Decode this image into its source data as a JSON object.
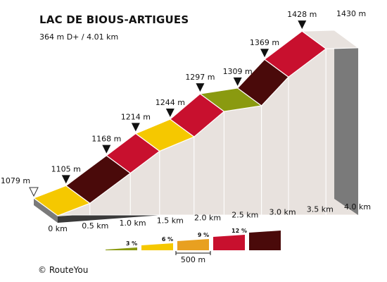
{
  "page": {
    "title": "LAC DE BIOUS-ARTIGUES",
    "subtitle": "364 m D+ / 4.01 km",
    "copyright": "© RouteYou"
  },
  "chart_data": {
    "type": "area",
    "title": "LAC DE BIOUS-ARTIGUES",
    "subtitle": "364 m D+ / 4.01 km",
    "x_unit": "km",
    "y_unit": "m",
    "xlim": [
      0,
      4.01
    ],
    "points": [
      {
        "km": 0.0,
        "elev": 1079,
        "label": "1079 m",
        "marker": "start"
      },
      {
        "km": 0.43,
        "elev": 1105,
        "label": "1105 m",
        "marker": "peak"
      },
      {
        "km": 0.97,
        "elev": 1168,
        "label": "1168 m",
        "marker": "peak"
      },
      {
        "km": 1.36,
        "elev": 1214,
        "label": "1214 m",
        "marker": "peak"
      },
      {
        "km": 1.82,
        "elev": 1244,
        "label": "1244 m",
        "marker": "peak"
      },
      {
        "km": 2.22,
        "elev": 1297,
        "label": "1297 m",
        "marker": "peak"
      },
      {
        "km": 2.72,
        "elev": 1309,
        "label": "1309 m",
        "marker": "peak"
      },
      {
        "km": 3.08,
        "elev": 1369,
        "label": "1369 m",
        "marker": "peak"
      },
      {
        "km": 3.58,
        "elev": 1428,
        "label": "1428 m",
        "marker": "peak"
      },
      {
        "km": 4.01,
        "elev": 1430,
        "label": "1430 m",
        "marker": "none"
      }
    ],
    "segment_colors": [
      "#f5c800",
      "#4a0a0a",
      "#c8102e",
      "#f5c800",
      "#c8102e",
      "#8a9a10",
      "#4a0a0a",
      "#c8102e",
      "#e8e2de"
    ],
    "x_ticks": [
      {
        "km": 0.0,
        "label": "0 km"
      },
      {
        "km": 0.5,
        "label": "0.5 km"
      },
      {
        "km": 1.0,
        "label": "1.0 km"
      },
      {
        "km": 1.5,
        "label": "1.5 km"
      },
      {
        "km": 2.0,
        "label": "2.0 km"
      },
      {
        "km": 2.5,
        "label": "2.5 km"
      },
      {
        "km": 3.0,
        "label": "3.0 km"
      },
      {
        "km": 3.5,
        "label": "3.5 km"
      },
      {
        "km": 4.0,
        "label": "4.0 km"
      }
    ],
    "legend": {
      "items": [
        {
          "label": "3 %",
          "color": "#8a9a10"
        },
        {
          "label": "6 %",
          "color": "#f5c800"
        },
        {
          "label": "9 %",
          "color": "#e8a020"
        },
        {
          "label": "12 %",
          "color": "#c8102e"
        },
        {
          "label": "",
          "color": "#4a0a0a"
        }
      ],
      "scale_label": "500 m"
    },
    "colors": {
      "side": "#e8e2de",
      "base_top": "#c8c8c8",
      "base_side": "#7a7a7a",
      "outline": "#222222"
    }
  }
}
